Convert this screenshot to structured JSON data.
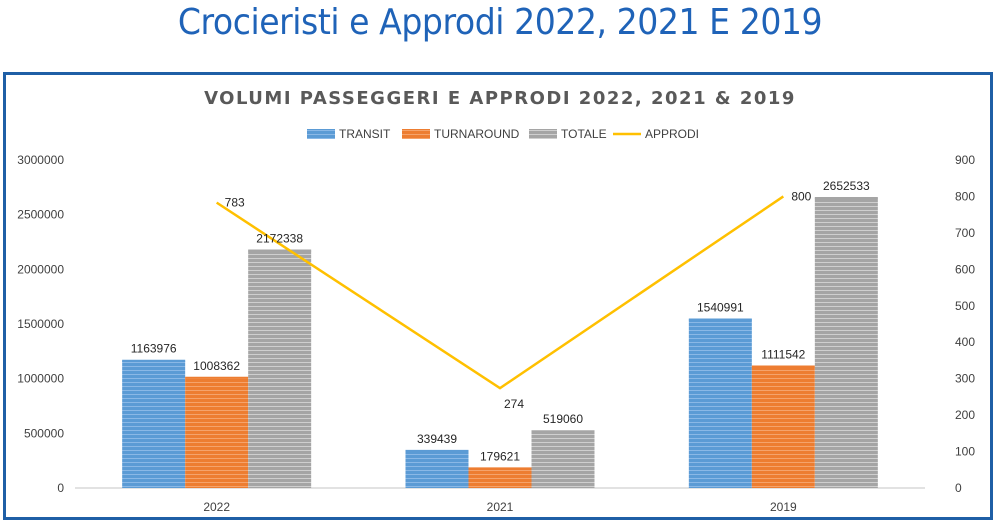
{
  "header": {
    "title": "Crocieristi e Approdi 2022, 2021 E 2019"
  },
  "chart_data": {
    "type": "bar",
    "title": "VOLUMI PASSEGGERI E APPRODI 2022, 2021 & 2019",
    "categories": [
      "2022",
      "2021",
      "2019"
    ],
    "series": [
      {
        "name": "TRANSIT",
        "type": "bar",
        "axis": "left",
        "color": "#5b9bd5",
        "values": [
          1163976,
          339439,
          1540991
        ]
      },
      {
        "name": "TURNAROUND",
        "type": "bar",
        "axis": "left",
        "color": "#ed7d31",
        "values": [
          1008362,
          179621,
          1111542
        ]
      },
      {
        "name": "TOTALE",
        "type": "bar",
        "axis": "left",
        "color": "#a5a5a5",
        "values": [
          2172338,
          519060,
          2652533
        ]
      },
      {
        "name": "APPRODI",
        "type": "line",
        "axis": "right",
        "color": "#ffc000",
        "values": [
          783,
          274,
          800
        ]
      }
    ],
    "ylim": [
      0,
      3000000
    ],
    "y_ticks": [
      "0",
      "500000",
      "1000000",
      "1500000",
      "2000000",
      "2500000",
      "3000000"
    ],
    "y2lim": [
      0,
      900
    ],
    "y2_ticks": [
      "0",
      "100",
      "200",
      "300",
      "400",
      "500",
      "600",
      "700",
      "800",
      "900"
    ],
    "legend_position": "top",
    "grid": false
  }
}
